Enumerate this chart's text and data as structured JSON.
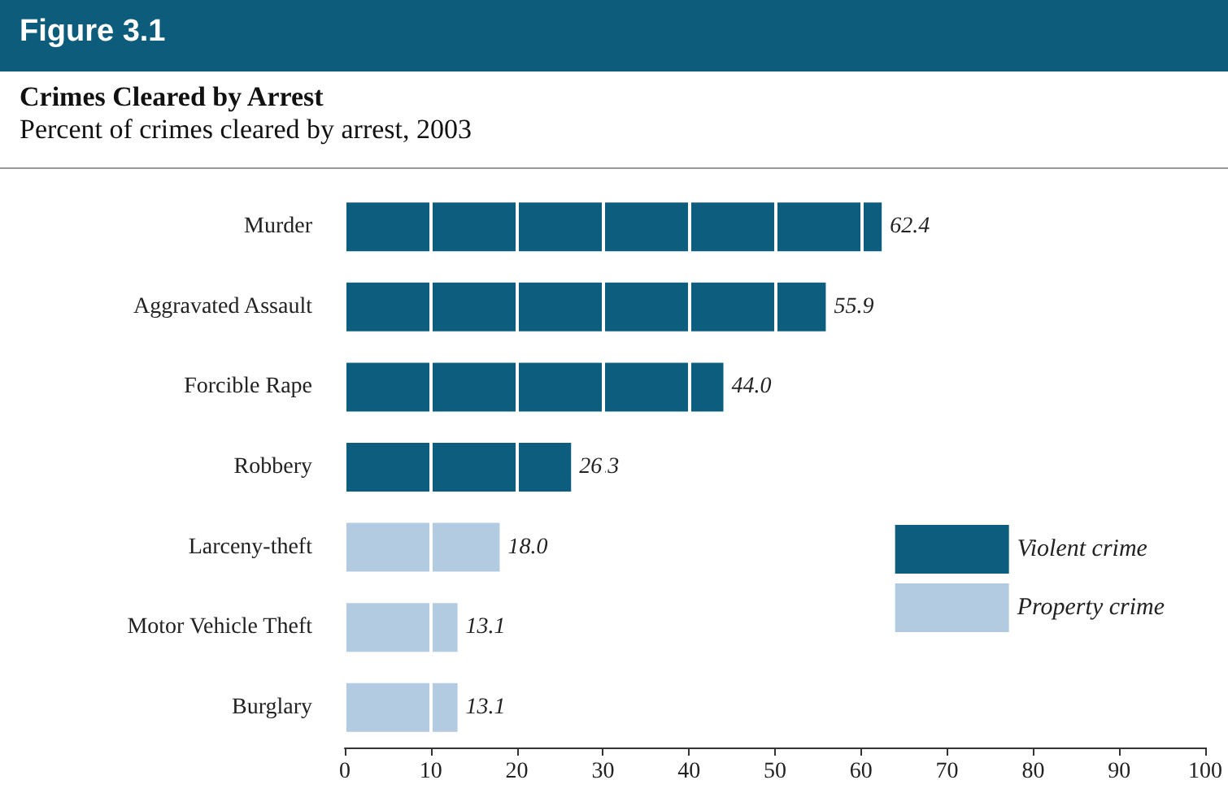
{
  "chart_data": {
    "type": "bar",
    "orientation": "horizontal",
    "title": "Crimes Cleared by Arrest",
    "subtitle": "Percent of crimes cleared by arrest, 2003",
    "annotations": [
      "Figure 3.1"
    ],
    "categories": [
      "Murder",
      "Aggravated Assault",
      "Forcible Rape",
      "Robbery",
      "Larceny-theft",
      "Motor Vehicle Theft",
      "Burglary"
    ],
    "series": [
      {
        "name": "Violent crime",
        "color": "#0d5e7e",
        "values": [
          62.4,
          55.9,
          44.0,
          26.3,
          null,
          null,
          null
        ],
        "value_labels": [
          "62.4",
          "55.9",
          "44.0",
          "26.3",
          null,
          null,
          null
        ]
      },
      {
        "name": "Property crime",
        "color": "#b3cbe0",
        "values": [
          null,
          null,
          null,
          null,
          18.0,
          13.1,
          13.1
        ],
        "value_labels": [
          null,
          null,
          null,
          null,
          "18.0",
          "13.1",
          "13.1"
        ]
      }
    ],
    "xlim": [
      0,
      100
    ],
    "xticks": [
      0,
      10,
      20,
      30,
      40,
      50,
      60,
      70,
      80,
      90,
      100
    ],
    "grid": "x",
    "legend": "bottom right"
  }
}
